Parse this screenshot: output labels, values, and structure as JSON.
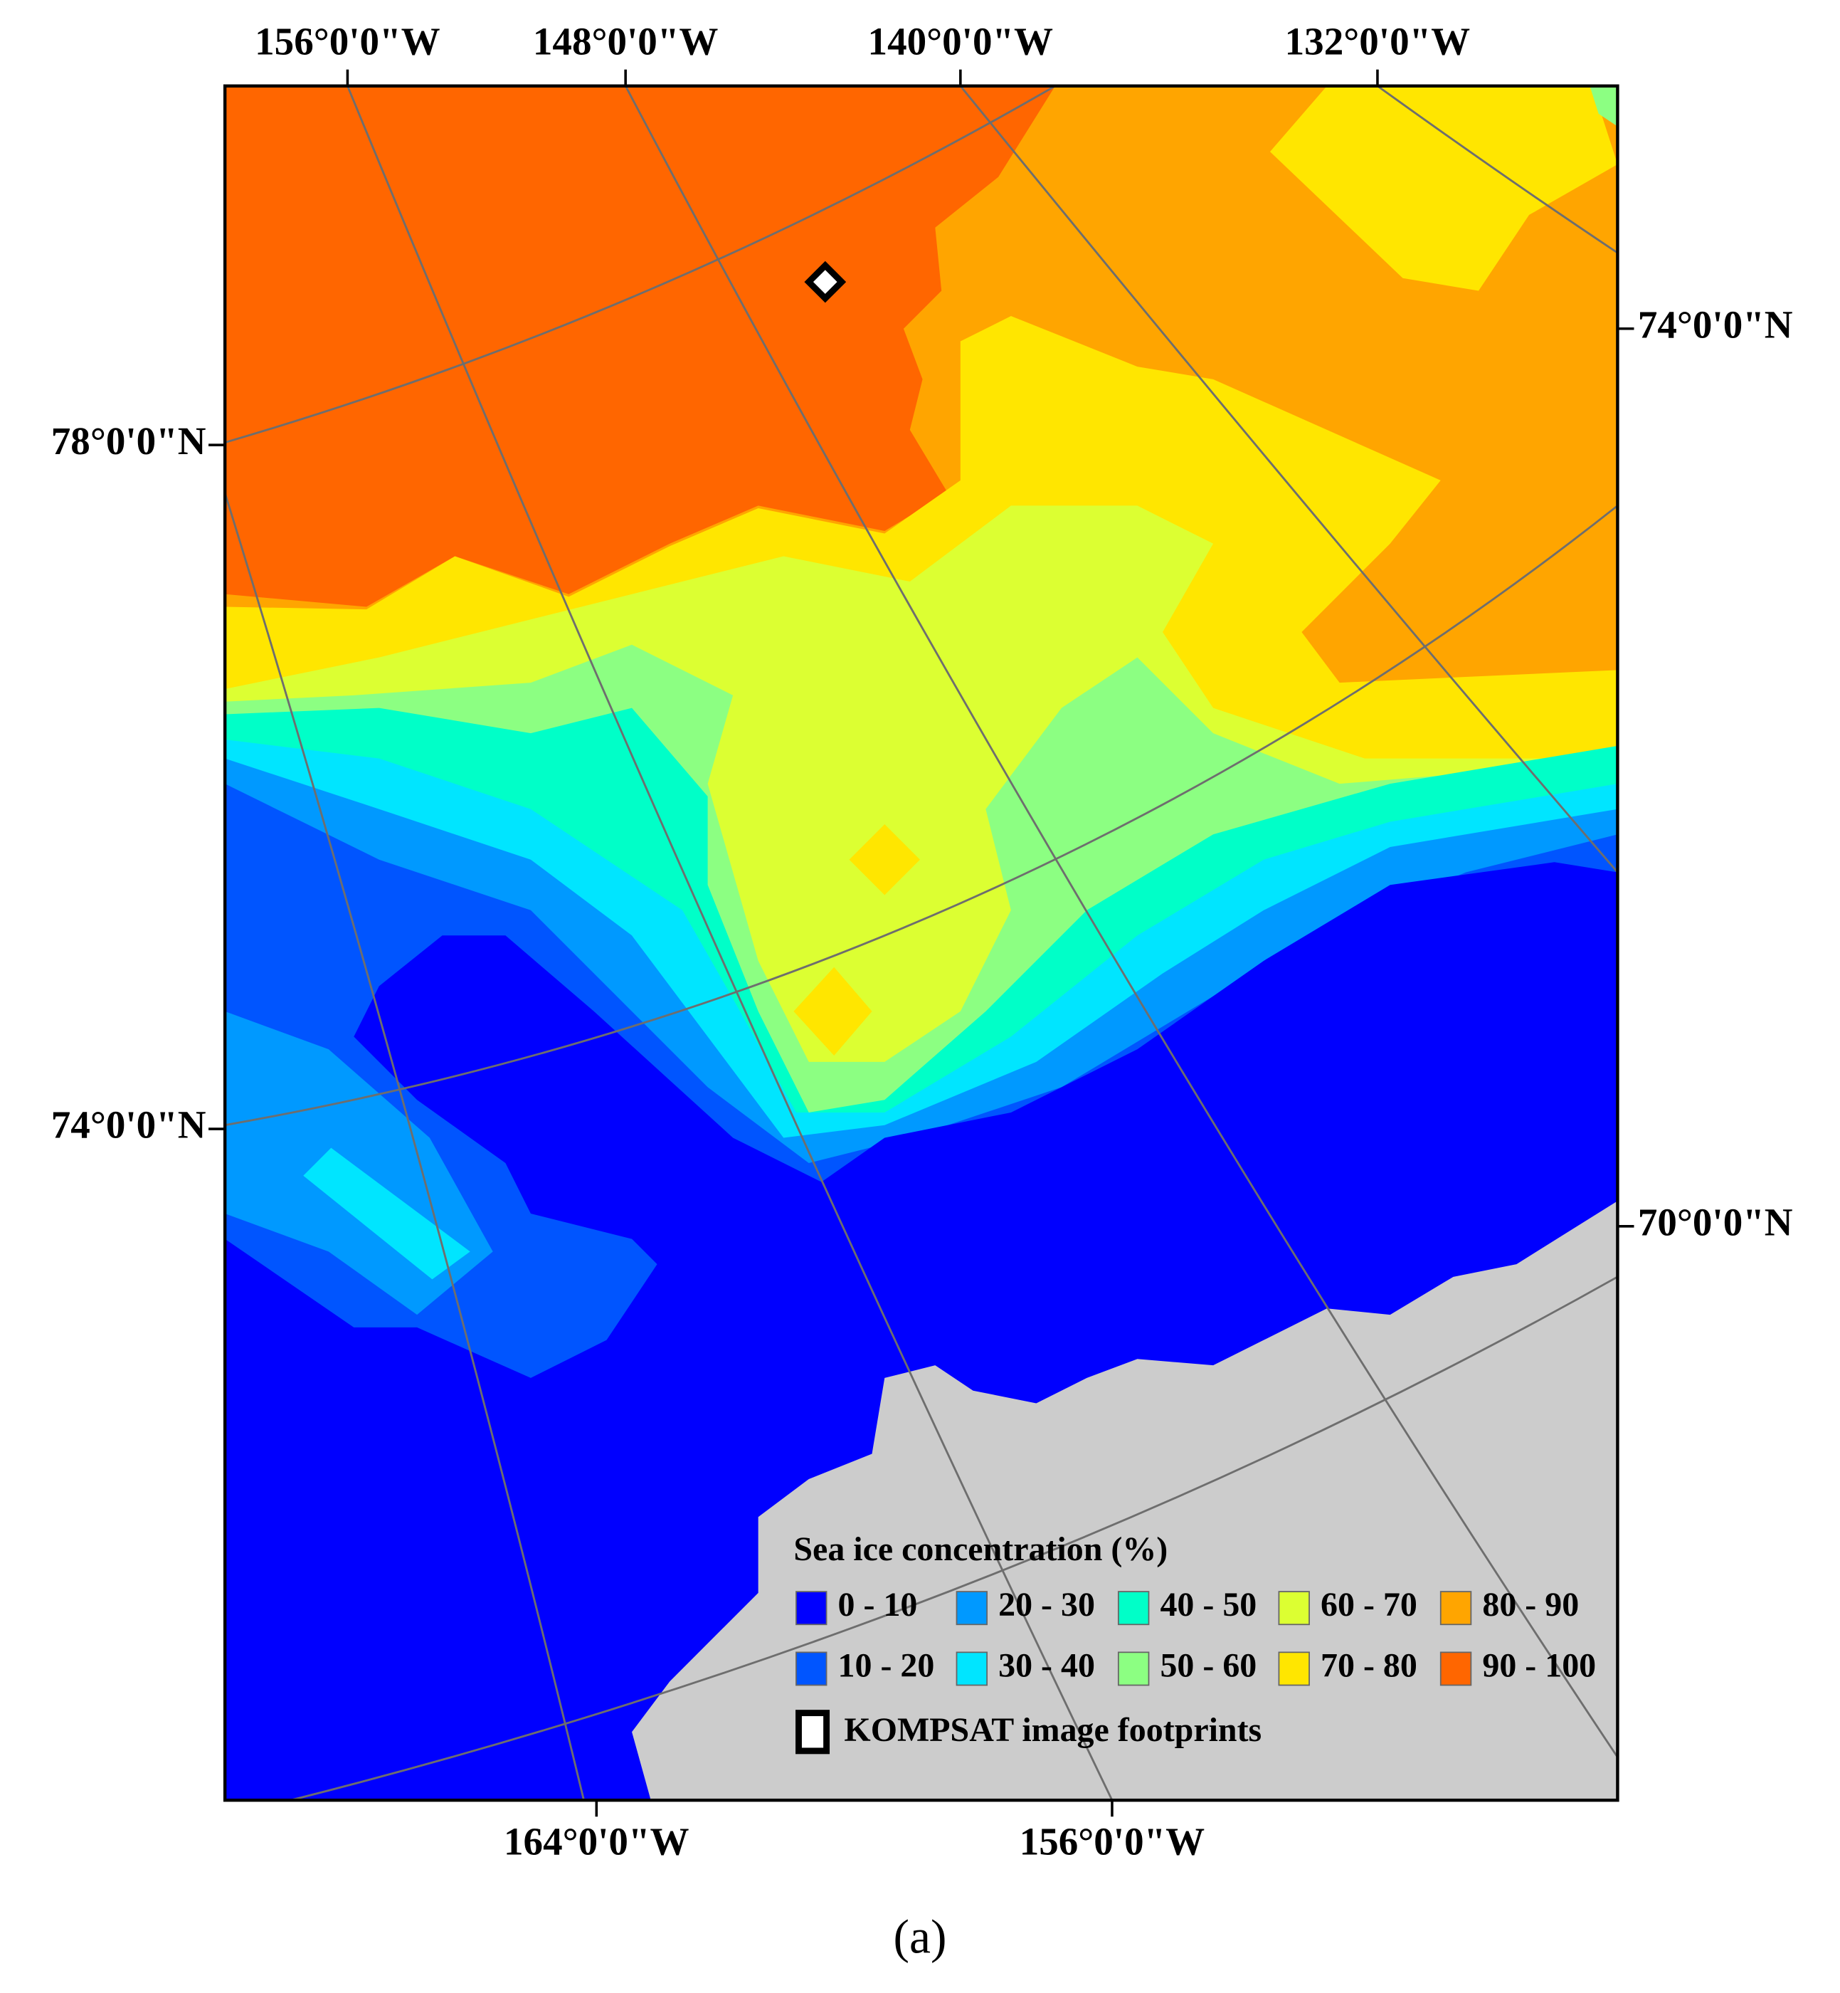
{
  "map": {
    "top_labels": [
      "156°0'0\"W",
      "148°0'0\"W",
      "140°0'0\"W",
      "132°0'0\"W"
    ],
    "bottom_labels": [
      "164°0'0\"W",
      "156°0'0\"W"
    ],
    "left_labels": [
      "78°0'0\"N",
      "74°0'0\"N"
    ],
    "right_labels": [
      "74°0'0\"N",
      "70°0'0\"N"
    ]
  },
  "legend": {
    "title": "Sea ice concentration (%)",
    "items": [
      {
        "label": "0 - 10",
        "color": "#0000ff"
      },
      {
        "label": "10 - 20",
        "color": "#0055ff"
      },
      {
        "label": "20 - 30",
        "color": "#0099ff"
      },
      {
        "label": "30 - 40",
        "color": "#00e5ff"
      },
      {
        "label": "40 - 50",
        "color": "#00ffc8"
      },
      {
        "label": "50 - 60",
        "color": "#8cff82"
      },
      {
        "label": "60 - 70",
        "color": "#dcff32"
      },
      {
        "label": "70 - 80",
        "color": "#ffe600"
      },
      {
        "label": "80 - 90",
        "color": "#ffa500"
      },
      {
        "label": "90 - 100",
        "color": "#ff6600"
      }
    ],
    "footprint_label": "KOMPSAT image footprints"
  },
  "caption": "(a)"
}
